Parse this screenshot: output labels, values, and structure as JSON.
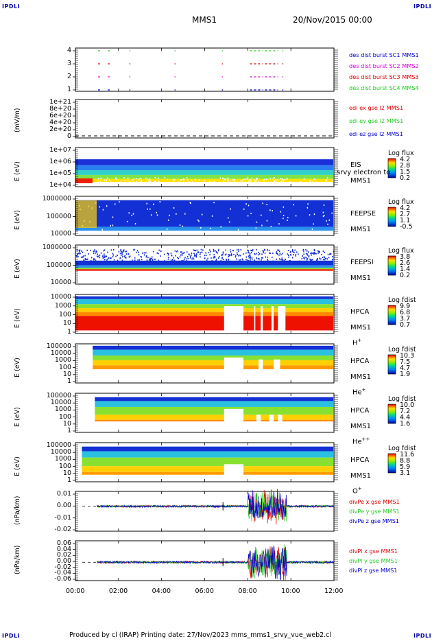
{
  "corners": {
    "tl": "IPDLI",
    "tr": "IPDLI",
    "bl": "IPDLI",
    "br": "IPDLI"
  },
  "header": {
    "spacecraft": "MMS1",
    "date": "20/Nov/2015 00:00"
  },
  "footer": "Produced by cl (IRAP)   Printing date: 27/Nov/2023   mms_mms1_srvy_vue_web2.cl",
  "colors": {
    "red": "#dd0000",
    "green": "#22cc22",
    "blue": "#0000cc",
    "magenta": "#dd00dd"
  },
  "chart_data": [
    {
      "id": "burst",
      "type": "scatter",
      "yticks": [
        "1",
        "2",
        "3",
        "4"
      ],
      "legend": [
        {
          "label": "des dist burst SC1 MMS1",
          "color": "#0000cc"
        },
        {
          "label": "des dist burst SC2 MMS2",
          "color": "#dd00dd"
        },
        {
          "label": "des dist burst SC3 MMS3",
          "color": "#dd0000"
        },
        {
          "label": "des dist burst SC4 MMS4",
          "color": "#22cc22"
        }
      ]
    },
    {
      "id": "edi",
      "type": "line",
      "ylabel": "(mV/m)",
      "yticks": [
        "0",
        "2e+20",
        "4e+20",
        "6e+20",
        "8e+20",
        "1e+21"
      ],
      "legend": [
        {
          "label": "edi ex gse l2 MMS1",
          "color": "#dd0000"
        },
        {
          "label": "edi ey gse l2 MMS1",
          "color": "#22cc22"
        },
        {
          "label": "edi ez gse l2 MMS1",
          "color": "#0000cc"
        }
      ]
    },
    {
      "id": "eis",
      "type": "heatmap",
      "ylabel": "E (eV)",
      "yticks": [
        "1e+04",
        "1e+05",
        "1e+06",
        "1e+07"
      ],
      "side": [
        "EIS",
        "MMS1"
      ],
      "overlay": "srvy electron to",
      "cbar": {
        "title": "Log flux",
        "values": [
          "4.2",
          "2.8",
          "1.5",
          "0.2"
        ]
      }
    },
    {
      "id": "feepse",
      "type": "heatmap",
      "ylabel": "E (eV)",
      "yticks": [
        "10000",
        "100000",
        "1000000"
      ],
      "side": [
        "FEEPSE",
        "MMS1"
      ],
      "cbar": {
        "title": "Log flux",
        "values": [
          "4.2",
          "2.7",
          "1.1",
          "-0.5"
        ]
      }
    },
    {
      "id": "feepsi",
      "type": "heatmap",
      "ylabel": "E (eV)",
      "yticks": [
        "10000",
        "100000",
        "1000000"
      ],
      "side": [
        "FEEPSI",
        "MMS1"
      ],
      "cbar": {
        "title": "Log flux",
        "values": [
          "3.8",
          "2.6",
          "1.4",
          "0.2"
        ]
      }
    },
    {
      "id": "hpca_h",
      "type": "heatmap",
      "ylabel": "E (eV)",
      "yticks": [
        "1",
        "10",
        "100",
        "1000",
        "10000"
      ],
      "side": [
        "HPCA",
        "MMS1"
      ],
      "species": "H",
      "sup": "+",
      "cbar": {
        "title": "Log fdist",
        "values": [
          "9.9",
          "6.8",
          "3.7",
          "0.7"
        ]
      }
    },
    {
      "id": "hpca_he1",
      "type": "heatmap",
      "ylabel": "E (eV)",
      "yticks": [
        "1",
        "10",
        "100",
        "1000",
        "10000",
        "100000"
      ],
      "side": [
        "HPCA",
        "MMS1"
      ],
      "species": "He",
      "sup": "+",
      "cbar": {
        "title": "Log fdist",
        "values": [
          "10.3",
          "7.5",
          "4.7",
          "1.9"
        ]
      }
    },
    {
      "id": "hpca_he2",
      "type": "heatmap",
      "ylabel": "E (eV)",
      "yticks": [
        "1",
        "10",
        "100",
        "1000",
        "10000",
        "100000"
      ],
      "side": [
        "HPCA",
        "MMS1"
      ],
      "species": "He",
      "sup": "++",
      "cbar": {
        "title": "Log fdist",
        "values": [
          "10.0",
          "7.2",
          "4.4",
          "1.6"
        ]
      }
    },
    {
      "id": "hpca_o",
      "type": "heatmap",
      "ylabel": "E (eV)",
      "yticks": [
        "1",
        "10",
        "100",
        "1000",
        "10000",
        "100000"
      ],
      "side": [
        "HPCA",
        "MMS1"
      ],
      "species": "O",
      "sup": "+",
      "cbar": {
        "title": "Log fdist",
        "values": [
          "11.6",
          "8.8",
          "5.9",
          "3.1"
        ]
      }
    },
    {
      "id": "divpe",
      "type": "line",
      "ylabel": "(nPa/km)",
      "yticks": [
        "-0.02",
        "-0.01",
        "0.00",
        "0.01"
      ],
      "ylim": [
        -0.02,
        0.012
      ],
      "legend": [
        {
          "label": "divPe x gse MMS1",
          "color": "#dd0000"
        },
        {
          "label": "divPe y gse MMS1",
          "color": "#22cc22"
        },
        {
          "label": "divPe z gse MMS1",
          "color": "#0000cc"
        }
      ]
    },
    {
      "id": "divpi",
      "type": "line",
      "ylabel": "(nPa/km)",
      "yticks": [
        "-0.06",
        "-0.04",
        "-0.02",
        "0.00",
        "0.02",
        "0.04",
        "0.06"
      ],
      "ylim": [
        -0.06,
        0.07
      ],
      "legend": [
        {
          "label": "divPi x gse MMS1",
          "color": "#dd0000"
        },
        {
          "label": "divPi y gse MMS1",
          "color": "#22cc22"
        },
        {
          "label": "divPi z gse MMS1",
          "color": "#0000cc"
        }
      ]
    }
  ],
  "xaxis": {
    "ticks": [
      "00:00",
      "02:00",
      "04:00",
      "06:00",
      "08:00",
      "10:00",
      "12:00"
    ],
    "range_hours": [
      0,
      12
    ]
  }
}
